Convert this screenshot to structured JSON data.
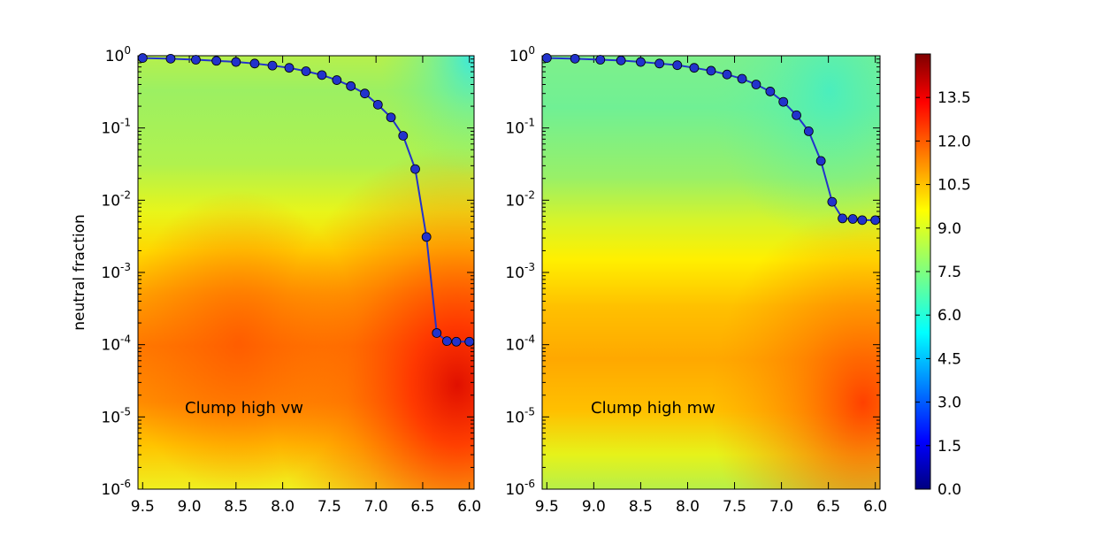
{
  "chart_data": [
    {
      "type": "line",
      "panel": "left",
      "annotation": "Clump high vw",
      "ylabel": "neutral fraction",
      "yscale": "log",
      "ylim_exp": [
        -6,
        0
      ],
      "xlim": [
        9.55,
        5.95
      ],
      "x_inverted": true,
      "xticks": [
        9.5,
        9.0,
        8.5,
        8.0,
        7.5,
        7.0,
        6.5,
        6.0
      ],
      "xtick_labels": [
        "9.5",
        "9.0",
        "8.5",
        "8.0",
        "7.5",
        "7.0",
        "6.5",
        "6.0"
      ],
      "ytick_exponents": [
        "0",
        "-1",
        "-2",
        "-3",
        "-4",
        "-5",
        "-6"
      ],
      "ytick_base": "10",
      "series": [
        {
          "name": "neutral fraction",
          "color": "#2233cc",
          "x": [
            9.5,
            9.2,
            8.93,
            8.71,
            8.5,
            8.3,
            8.11,
            7.93,
            7.75,
            7.58,
            7.42,
            7.27,
            7.12,
            6.98,
            6.84,
            6.71,
            6.58,
            6.46,
            6.35,
            6.24,
            6.14,
            6.0
          ],
          "y": [
            0.93,
            0.91,
            0.88,
            0.85,
            0.82,
            0.78,
            0.73,
            0.68,
            0.61,
            0.54,
            0.46,
            0.38,
            0.3,
            0.21,
            0.14,
            0.078,
            0.027,
            0.0031,
            0.000145,
            0.000112,
            0.00011,
            0.00011
          ]
        }
      ],
      "colormap_note": "background colour field, values 0.0-15.0"
    },
    {
      "type": "line",
      "panel": "right",
      "annotation": "Clump high mw",
      "yscale": "log",
      "ylim_exp": [
        -6,
        0
      ],
      "xlim": [
        9.55,
        5.95
      ],
      "x_inverted": true,
      "xticks": [
        9.5,
        9.0,
        8.5,
        8.0,
        7.5,
        7.0,
        6.5,
        6.0
      ],
      "xtick_labels": [
        "9.5",
        "9.0",
        "8.5",
        "8.0",
        "7.5",
        "7.0",
        "6.5",
        "6.0"
      ],
      "ytick_exponents": [
        "0",
        "-1",
        "-2",
        "-3",
        "-4",
        "-5",
        "-6"
      ],
      "ytick_base": "10",
      "series": [
        {
          "name": "neutral fraction",
          "color": "#2233cc",
          "x": [
            9.5,
            9.2,
            8.93,
            8.71,
            8.5,
            8.3,
            8.11,
            7.93,
            7.75,
            7.58,
            7.42,
            7.27,
            7.12,
            6.98,
            6.84,
            6.71,
            6.58,
            6.46,
            6.35,
            6.24,
            6.14,
            6.0
          ],
          "y": [
            0.93,
            0.91,
            0.88,
            0.86,
            0.82,
            0.78,
            0.74,
            0.68,
            0.62,
            0.55,
            0.48,
            0.4,
            0.32,
            0.23,
            0.15,
            0.09,
            0.035,
            0.0095,
            0.0056,
            0.0055,
            0.0053,
            0.0053
          ]
        }
      ]
    }
  ],
  "colorbar": {
    "range": [
      0.0,
      15.0
    ],
    "ticks": [
      0.0,
      1.5,
      3.0,
      4.5,
      6.0,
      7.5,
      9.0,
      10.5,
      12.0,
      13.5
    ],
    "tick_labels": [
      "0.0",
      "1.5",
      "3.0",
      "4.5",
      "6.0",
      "7.5",
      "9.0",
      "10.5",
      "12.0",
      "13.5"
    ],
    "colors": [
      "#00007f",
      "#0000ff",
      "#007fff",
      "#00ffff",
      "#7fff7f",
      "#ffff00",
      "#ff7f00",
      "#ff0000",
      "#7f0000"
    ]
  }
}
